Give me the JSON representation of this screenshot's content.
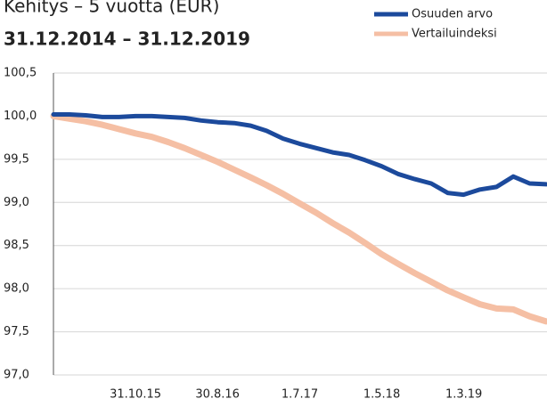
{
  "chart_data": {
    "type": "line",
    "title": "Kehitys – 5 vuotta (EUR)",
    "subtitle": "31.12.2014 – 31.12.2019",
    "x": [
      "31.12.14",
      "28.2.15",
      "30.4.15",
      "30.6.15",
      "31.8.15",
      "31.10.15",
      "31.12.15",
      "29.2.16",
      "30.4.16",
      "30.6.16",
      "31.8.16",
      "31.10.16",
      "31.12.16",
      "28.2.17",
      "30.4.17",
      "30.6.17",
      "31.8.17",
      "31.10.17",
      "31.12.17",
      "28.2.18",
      "30.4.18",
      "30.6.18",
      "31.8.18",
      "31.10.18",
      "31.12.18",
      "28.2.19",
      "30.4.19",
      "30.6.19",
      "31.8.19",
      "31.10.19",
      "31.12.19"
    ],
    "series": [
      {
        "name": "Osuuden arvo",
        "color": "#1c4a9c",
        "values": [
          100.02,
          100.02,
          100.01,
          99.99,
          99.99,
          100.0,
          100.0,
          99.99,
          99.98,
          99.95,
          99.93,
          99.92,
          99.89,
          99.83,
          99.74,
          99.68,
          99.63,
          99.58,
          99.55,
          99.49,
          99.42,
          99.33,
          99.27,
          99.22,
          99.11,
          99.09,
          99.15,
          99.18,
          99.3,
          99.22,
          99.21
        ]
      },
      {
        "name": "Vertailuindeksi",
        "color": "#f5bfa4",
        "values": [
          100.0,
          99.97,
          99.94,
          99.9,
          99.85,
          99.8,
          99.76,
          99.7,
          99.63,
          99.55,
          99.47,
          99.38,
          99.29,
          99.2,
          99.1,
          98.99,
          98.88,
          98.76,
          98.65,
          98.53,
          98.4,
          98.29,
          98.18,
          98.08,
          97.98,
          97.9,
          97.82,
          97.77,
          97.76,
          97.68,
          97.62
        ]
      }
    ],
    "xlim": [
      "31.12.14",
      "31.12.19"
    ],
    "xticks": [
      "31.10.15",
      "30.8.16",
      "1.7.17",
      "1.5.18",
      "1.3.19"
    ],
    "ylim": [
      97.0,
      100.5
    ],
    "yticks": [
      {
        "value": 97.0,
        "label": "97,0"
      },
      {
        "value": 97.5,
        "label": "97,5"
      },
      {
        "value": 98.0,
        "label": "98,0"
      },
      {
        "value": 98.5,
        "label": "98,5"
      },
      {
        "value": 99.0,
        "label": "99,0"
      },
      {
        "value": 99.5,
        "label": "99,5"
      },
      {
        "value": 100.0,
        "label": "100,0"
      },
      {
        "value": 100.5,
        "label": "100,5"
      }
    ],
    "grid": true,
    "legend": "top-right"
  }
}
